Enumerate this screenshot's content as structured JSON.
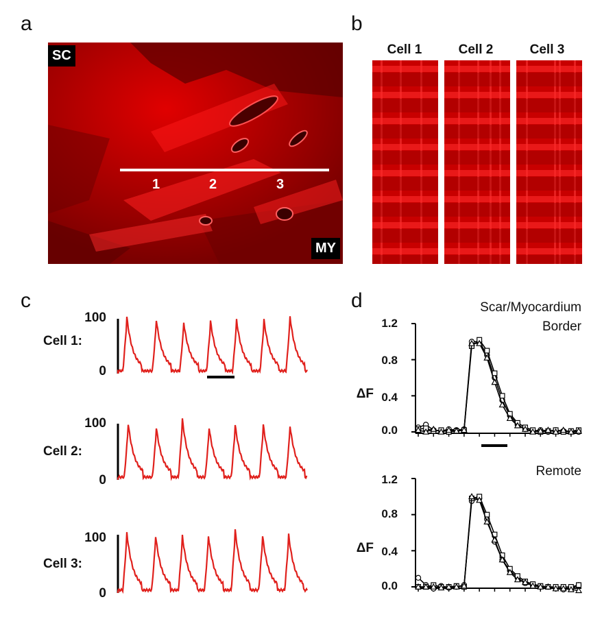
{
  "panels": {
    "a": {
      "letter": "a",
      "sc_label": "SC",
      "my_label": "MY",
      "line_labels": [
        "1",
        "2",
        "3"
      ]
    },
    "b": {
      "letter": "b",
      "cells": [
        "Cell 1",
        "Cell 2",
        "Cell 3"
      ]
    },
    "c": {
      "letter": "c",
      "y_ticks": [
        "100",
        "0"
      ],
      "rows": [
        {
          "label": "Cell 1:"
        },
        {
          "label": "Cell 2:"
        },
        {
          "label": "Cell 3:"
        }
      ]
    },
    "d": {
      "letter": "d",
      "top_title_line1": "Scar/Myocardium",
      "top_title_line2": "Border",
      "bottom_title": "Remote",
      "ylabel": "ΔF",
      "y_ticks": [
        "1.2",
        "0.8",
        "0.4",
        "0.0"
      ]
    }
  },
  "colors": {
    "trace": "#e0201c",
    "image_red": "#d80000",
    "image_dark": "#4a0000"
  },
  "chart_data": [
    {
      "type": "line",
      "title": "",
      "xlabel": "",
      "ylabel": "ΔF",
      "ylim": [
        0,
        1.2
      ],
      "y_ticks": [
        0.0,
        0.4,
        0.8,
        1.2
      ],
      "x": [
        0,
        1,
        2,
        3,
        4,
        5,
        6,
        7,
        8,
        9,
        10,
        11,
        12,
        13,
        14,
        15,
        16,
        17,
        18,
        19,
        20,
        21
      ],
      "series": [
        {
          "marker": "circle",
          "values": [
            0.05,
            0.08,
            0.02,
            0.01,
            0.03,
            0.02,
            0.03,
            1.0,
            1.0,
            0.85,
            0.6,
            0.35,
            0.18,
            0.08,
            0.03,
            0.01,
            0.02,
            0.0,
            0.02,
            0.01,
            0.0,
            0.0
          ]
        },
        {
          "marker": "square",
          "values": [
            0.03,
            0.04,
            0.01,
            0.02,
            0.0,
            0.01,
            0.02,
            0.95,
            1.02,
            0.9,
            0.65,
            0.4,
            0.2,
            0.1,
            0.05,
            0.02,
            0.0,
            0.01,
            0.02,
            0.0,
            0.01,
            0.02
          ]
        },
        {
          "marker": "triangle",
          "values": [
            0.02,
            0.0,
            0.03,
            0.0,
            0.02,
            0.01,
            0.02,
            0.98,
            0.98,
            0.82,
            0.55,
            0.3,
            0.15,
            0.07,
            0.03,
            0.0,
            0.01,
            0.02,
            0.0,
            0.02,
            0.0,
            0.01
          ]
        }
      ],
      "scale_bar": true
    },
    {
      "type": "line",
      "title": "Remote",
      "xlabel": "",
      "ylabel": "ΔF",
      "ylim": [
        0,
        1.2
      ],
      "y_ticks": [
        0.0,
        0.4,
        0.8,
        1.2
      ],
      "x": [
        0,
        1,
        2,
        3,
        4,
        5,
        6,
        7,
        8,
        9,
        10,
        11,
        12,
        13,
        14,
        15,
        16,
        17,
        18,
        19,
        20,
        21
      ],
      "series": [
        {
          "marker": "circle",
          "values": [
            0.1,
            0.02,
            -0.02,
            0.01,
            -0.01,
            0.0,
            0.02,
            0.95,
            0.98,
            0.75,
            0.5,
            0.3,
            0.18,
            0.1,
            0.04,
            0.02,
            0.0,
            0.0,
            -0.02,
            -0.03,
            -0.02,
            0.02
          ]
        },
        {
          "marker": "square",
          "values": [
            0.0,
            0.0,
            0.02,
            0.0,
            0.0,
            0.01,
            0.0,
            0.98,
            1.0,
            0.8,
            0.58,
            0.35,
            0.2,
            0.12,
            0.06,
            0.03,
            0.01,
            0.0,
            0.0,
            0.0,
            0.0,
            0.02
          ]
        },
        {
          "marker": "triangle",
          "values": [
            0.0,
            0.0,
            0.0,
            -0.01,
            0.0,
            0.0,
            0.01,
            1.0,
            0.96,
            0.72,
            0.52,
            0.3,
            0.16,
            0.08,
            0.05,
            0.01,
            0.0,
            0.0,
            -0.02,
            -0.02,
            -0.03,
            -0.04
          ]
        }
      ]
    }
  ]
}
